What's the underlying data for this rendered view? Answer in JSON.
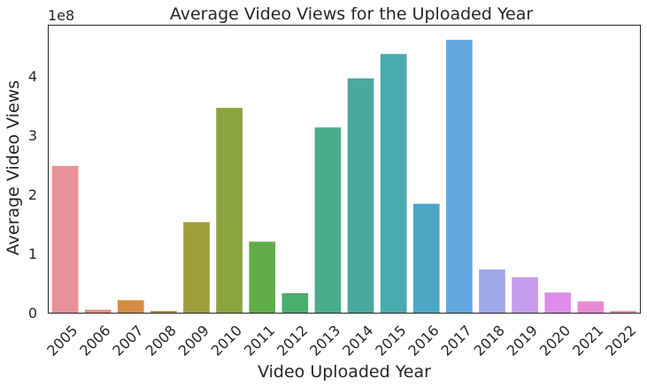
{
  "chart_data": {
    "type": "bar",
    "title": "Average Video Views for the Uploaded Year",
    "xlabel": "Video Uploaded Year",
    "ylabel": "Average Video Views",
    "y_offset_label": "1e8",
    "ylim": [
      0,
      4.85
    ],
    "y_ticks": [
      0,
      1,
      2,
      3,
      4
    ],
    "y_tick_labels": [
      "0",
      "1",
      "2",
      "3",
      "4"
    ],
    "grid": false,
    "categories": [
      "2005",
      "2006",
      "2007",
      "2008",
      "2009",
      "2010",
      "2011",
      "2012",
      "2013",
      "2014",
      "2015",
      "2016",
      "2017",
      "2018",
      "2019",
      "2020",
      "2021",
      "2022"
    ],
    "values": [
      2.48,
      0.05,
      0.21,
      0.03,
      1.53,
      3.46,
      1.2,
      0.33,
      3.13,
      3.96,
      4.37,
      1.84,
      4.61,
      0.73,
      0.6,
      0.34,
      0.19,
      0.03
    ],
    "colors": [
      "#e8919b",
      "#e18f7c",
      "#d38c43",
      "#b8993f",
      "#a09e3b",
      "#8ba43d",
      "#61ad4a",
      "#4bae6e",
      "#4aac8d",
      "#48aa9e",
      "#49abad",
      "#4ba7c4",
      "#61a8e0",
      "#a0a8ec",
      "#c59ced",
      "#de8ce9",
      "#e88bd2",
      "#e88fb6"
    ]
  }
}
